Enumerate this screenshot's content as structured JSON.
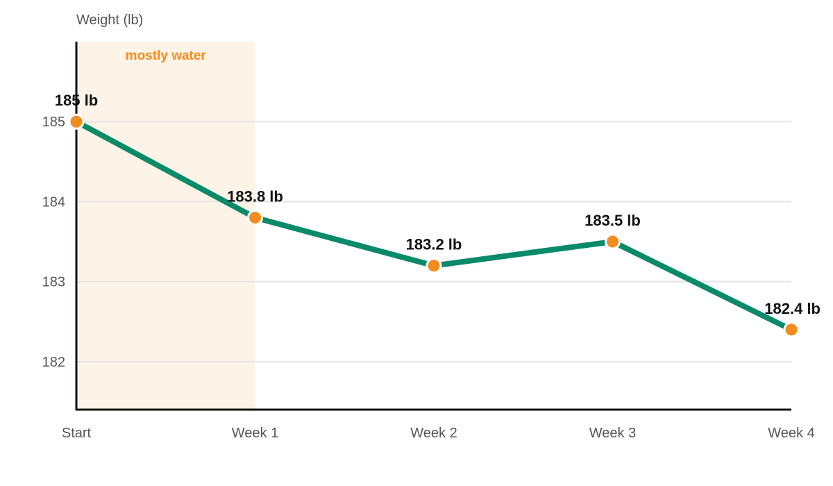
{
  "chart_data": {
    "type": "line",
    "categories": [
      "Start",
      "Week 1",
      "Week 2",
      "Week 3",
      "Week 4"
    ],
    "values": [
      185,
      183.8,
      183.2,
      183.5,
      182.4
    ],
    "data_labels": [
      "185 lb",
      "183.8 lb",
      "183.2 lb",
      "183.5 lb",
      "182.4 lb"
    ],
    "ylabel": "Weight (lb)",
    "yticks": [
      182,
      183,
      184,
      185
    ],
    "ylim": [
      181.4,
      186
    ],
    "grid": true,
    "annotation": {
      "label": "mostly water",
      "x_from": "Start",
      "x_to": "Week 1"
    },
    "colors": {
      "line": "#0b8a6a",
      "marker": "#f28c1e",
      "band_fill": "#fdf3e6",
      "band_label": "#f28c1e"
    }
  }
}
